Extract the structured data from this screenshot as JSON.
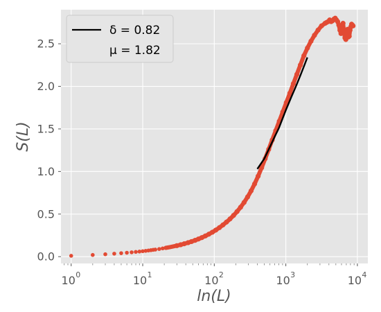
{
  "chart_data": {
    "type": "scatter",
    "title": "",
    "xlabel": "ln(L)",
    "ylabel": "S(L)",
    "x_scale": "log",
    "xlim": [
      0.72,
      14000
    ],
    "ylim": [
      -0.08,
      2.9
    ],
    "grid": true,
    "legend_position": "top-left",
    "x_ticks": [
      1,
      10,
      100,
      1000,
      10000
    ],
    "x_tick_labels": [
      "10",
      "10",
      "10",
      "10",
      "10"
    ],
    "x_tick_exponents": [
      "0",
      "1",
      "2",
      "3",
      "4"
    ],
    "y_ticks": [
      0.0,
      0.5,
      1.0,
      1.5,
      2.0,
      2.5
    ],
    "y_tick_labels": [
      "0.0",
      "0.5",
      "1.0",
      "1.5",
      "2.0",
      "2.5"
    ],
    "series": [
      {
        "kind": "points",
        "color": "#E24A33",
        "x": [
          1,
          2,
          3,
          4,
          5,
          6,
          7,
          8,
          9,
          10,
          11,
          12,
          13,
          14,
          15,
          17,
          19,
          21,
          24,
          27,
          30,
          34,
          38,
          43,
          48,
          54,
          60,
          67,
          75,
          84,
          94,
          105,
          118,
          132,
          148,
          166,
          186,
          208,
          233,
          261,
          292,
          327,
          366,
          410,
          459,
          514,
          576,
          645,
          722,
          809,
          906,
          1015,
          1137,
          1273,
          1426,
          1597,
          1789,
          2004,
          2245,
          2514,
          2816,
          3154,
          3532,
          3700,
          3900,
          4100,
          4300,
          4500,
          4700,
          4900,
          5100,
          5300,
          5500,
          5700,
          5900,
          6100,
          6300,
          6500,
          6700,
          6900,
          7100,
          7300,
          7500,
          7700,
          7900,
          8100,
          8300,
          8500,
          8700
        ],
        "y": [
          0.01,
          0.02,
          0.028,
          0.035,
          0.041,
          0.046,
          0.051,
          0.056,
          0.06,
          0.064,
          0.068,
          0.072,
          0.076,
          0.08,
          0.083,
          0.09,
          0.097,
          0.103,
          0.112,
          0.121,
          0.129,
          0.14,
          0.151,
          0.164,
          0.177,
          0.192,
          0.207,
          0.224,
          0.243,
          0.264,
          0.287,
          0.312,
          0.341,
          0.372,
          0.406,
          0.443,
          0.484,
          0.529,
          0.58,
          0.637,
          0.701,
          0.773,
          0.854,
          0.945,
          1.045,
          1.15,
          1.26,
          1.37,
          1.48,
          1.59,
          1.7,
          1.81,
          1.92,
          2.03,
          2.14,
          2.25,
          2.36,
          2.45,
          2.53,
          2.6,
          2.66,
          2.71,
          2.74,
          2.75,
          2.76,
          2.78,
          2.76,
          2.77,
          2.79,
          2.8,
          2.78,
          2.76,
          2.72,
          2.66,
          2.62,
          2.7,
          2.74,
          2.64,
          2.57,
          2.55,
          2.6,
          2.67,
          2.58,
          2.59,
          2.66,
          2.7,
          2.73,
          2.72,
          2.71
        ]
      },
      {
        "kind": "line",
        "name": "δ = 0.82",
        "color": "#000000",
        "x": [
          400,
          500,
          600,
          700,
          800,
          1000,
          1200,
          1400,
          1600,
          1800,
          2000
        ],
        "y": [
          1.03,
          1.15,
          1.29,
          1.41,
          1.51,
          1.72,
          1.88,
          2.01,
          2.13,
          2.24,
          2.34
        ]
      }
    ],
    "legend": {
      "entries": [
        {
          "label": "δ = 0.82",
          "line_color": "#000000"
        },
        {
          "label": "μ = 1.82",
          "line_color": null
        }
      ]
    },
    "colors": {
      "plot_background": "#E5E5E5",
      "grid": "#FFFFFF",
      "points": "#E24A33",
      "fit_line": "#000000"
    }
  }
}
